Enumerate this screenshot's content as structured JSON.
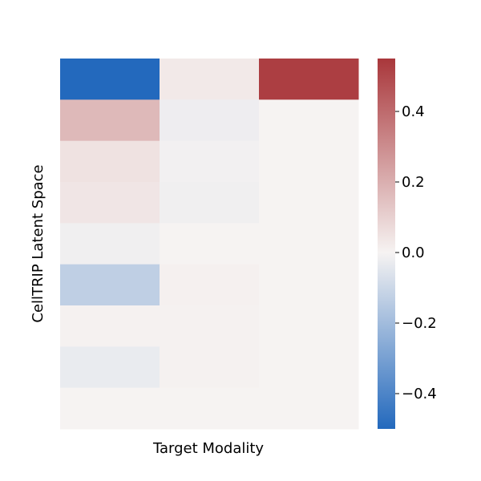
{
  "chart_data": {
    "type": "heatmap",
    "title": "",
    "xlabel": "Target Modality",
    "ylabel": "CellTRIP Latent Space",
    "rows": 9,
    "cols": 3,
    "values": [
      [
        -0.5,
        0.03,
        0.53
      ],
      [
        0.17,
        -0.02,
        0.0
      ],
      [
        0.05,
        -0.01,
        0.0
      ],
      [
        0.04,
        -0.015,
        0.0
      ],
      [
        -0.015,
        0.0,
        0.0
      ],
      [
        -0.13,
        0.01,
        0.0
      ],
      [
        0.005,
        0.005,
        0.0
      ],
      [
        -0.03,
        0.005,
        0.0
      ],
      [
        0.0,
        0.0,
        0.0
      ]
    ],
    "colormap": {
      "name": "vlag",
      "min": -0.5,
      "max": 0.55,
      "low_color": "#2369bd",
      "mid_color": "#f6f3f2",
      "high_color": "#a9373b"
    },
    "colorbar": {
      "ticks": [
        -0.4,
        -0.2,
        0.0,
        0.2,
        0.4
      ],
      "tick_labels": [
        "−0.4",
        "−0.2",
        "0.0",
        "0.2",
        "0.4"
      ]
    },
    "grid": false,
    "legend": "colorbar-right"
  }
}
